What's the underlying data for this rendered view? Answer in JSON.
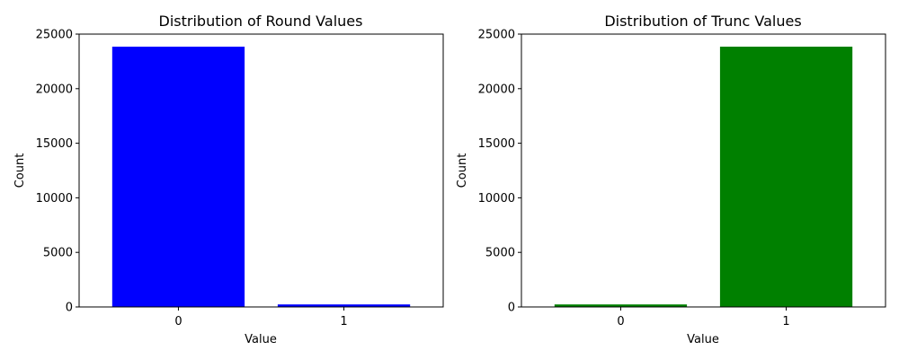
{
  "chart_data": [
    {
      "type": "bar",
      "title": "Distribution of Round Values",
      "xlabel": "Value",
      "ylabel": "Count",
      "categories": [
        "0",
        "1"
      ],
      "values": [
        23850,
        230
      ],
      "ylim": [
        0,
        25000
      ],
      "yticks": [
        "0",
        "5000",
        "10000",
        "15000",
        "20000",
        "25000"
      ],
      "color": "#0000ff",
      "grid": false
    },
    {
      "type": "bar",
      "title": "Distribution of Trunc Values",
      "xlabel": "Value",
      "ylabel": "Count",
      "categories": [
        "0",
        "1"
      ],
      "values": [
        230,
        23850
      ],
      "ylim": [
        0,
        25000
      ],
      "yticks": [
        "0",
        "5000",
        "10000",
        "15000",
        "20000",
        "25000"
      ],
      "color": "#008000",
      "grid": false
    }
  ]
}
